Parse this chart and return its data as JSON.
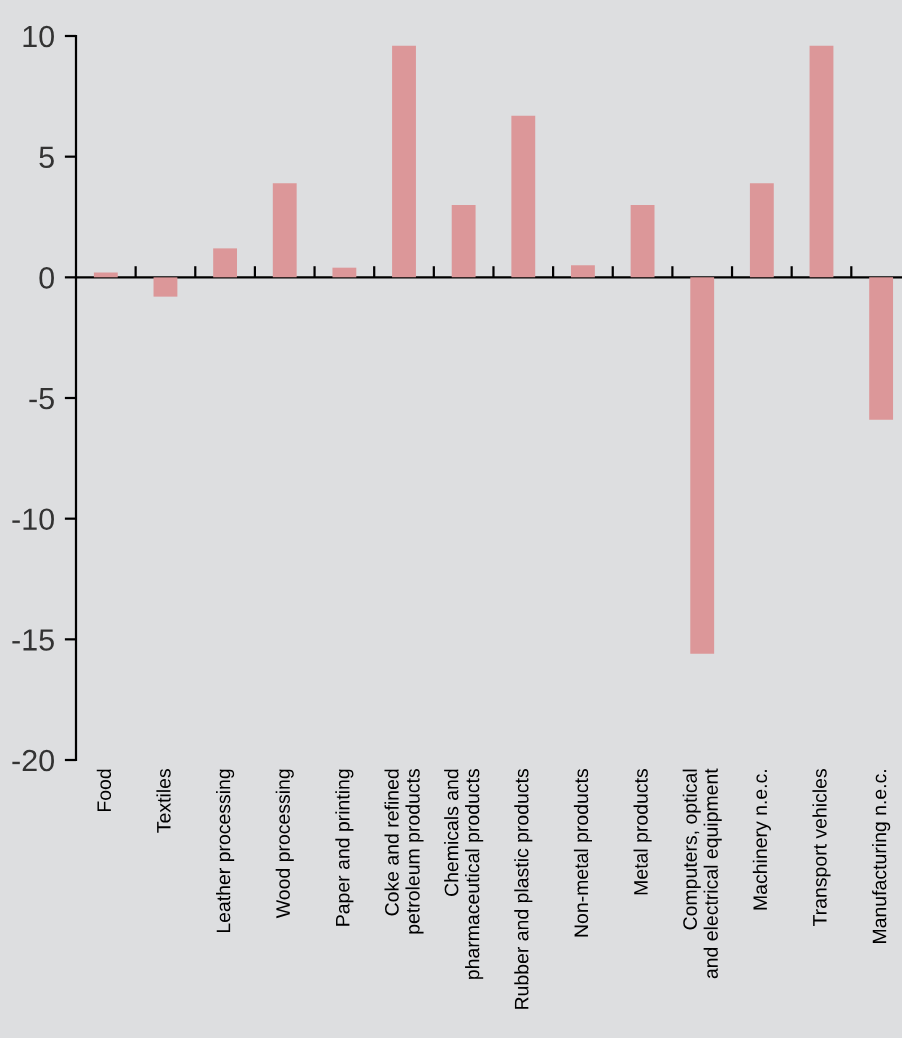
{
  "chart_data": {
    "type": "bar",
    "categories": [
      "Food",
      "Textiles",
      "Leather processing",
      "Wood processing",
      "Paper and printing",
      "Coke and refined\npetroleum products",
      "Chemicals and\npharmaceutical products",
      "Rubber and plastic products",
      "Non-metal products",
      "Metal products",
      "Computers, optical\nand electrical equipment",
      "Machinery n.e.c.",
      "Transport vehicles",
      "Manufacturing n.e.c."
    ],
    "values": [
      0.2,
      -0.8,
      1.2,
      3.9,
      0.4,
      9.6,
      3.0,
      6.7,
      0.5,
      3.0,
      -15.6,
      3.9,
      9.6,
      -5.9
    ],
    "color": "#dc9799",
    "ylim": [
      -20,
      10
    ],
    "yticks": [
      -20,
      -15,
      -10,
      -5,
      0,
      5,
      10
    ]
  }
}
